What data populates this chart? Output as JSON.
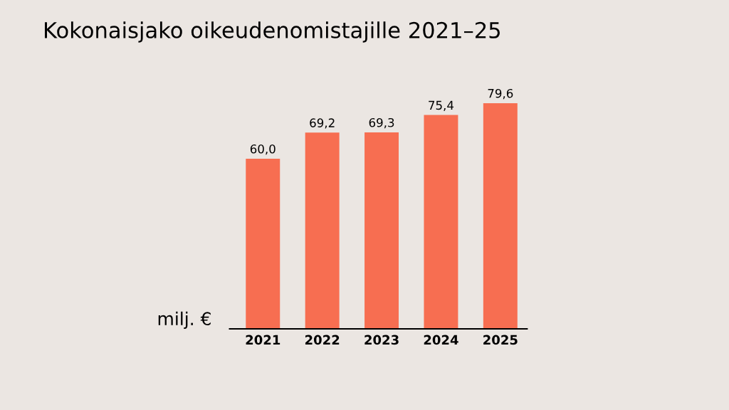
{
  "chart_data": {
    "type": "bar",
    "title": "Kokonaisjako oikeudenomistajille 2021–25",
    "ylabel": "milj. €",
    "categories": [
      "2021",
      "2022",
      "2023",
      "2024",
      "2025"
    ],
    "values": [
      60.0,
      69.2,
      69.3,
      75.4,
      79.6
    ],
    "value_labels": [
      "60,0",
      "69,2",
      "69,3",
      "75,4",
      "79,6"
    ],
    "color": "#f76e51",
    "grid": false,
    "legend": false
  }
}
